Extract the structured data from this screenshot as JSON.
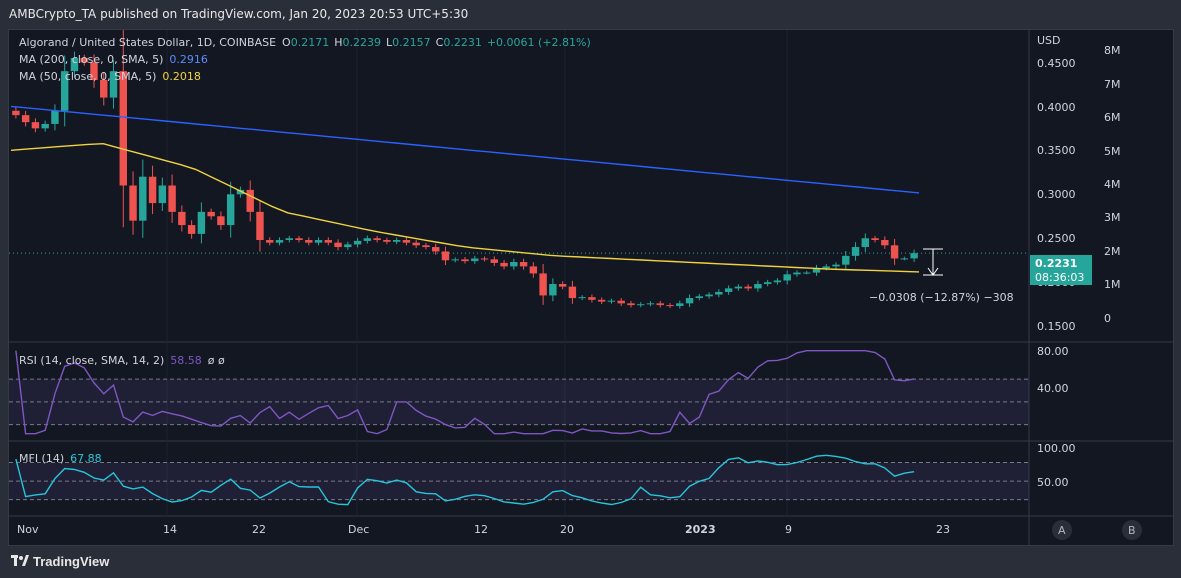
{
  "header": {
    "publisher_line": "AMBCrypto_TA published on TradingView.com, Jan 20, 2023 20:53 UTC+5:30"
  },
  "legend": {
    "symbol": "Algorand / United States Dollar, 1D, COINBASE",
    "o_label": "O",
    "o_value": "0.2171",
    "h_label": "H",
    "h_value": "0.2239",
    "l_label": "L",
    "l_value": "0.2157",
    "c_label": "C",
    "c_value": "0.2231",
    "change": "+0.0061 (+2.81%)",
    "ma200_label": "MA (200, close, 0, SMA, 5)",
    "ma200_value": "0.2916",
    "ma50_label": "MA (50, close, 0, SMA, 5)",
    "ma50_value": "0.2018"
  },
  "price_axis": {
    "currency": "USD",
    "ticks": [
      "0.4500",
      "0.4000",
      "0.3500",
      "0.3000",
      "0.2500",
      "0.1500"
    ],
    "price_label": "0.2231",
    "countdown": "08:36:03",
    "partial_label": "0.2000"
  },
  "volume_axis": {
    "ticks": [
      "8M",
      "7M",
      "6M",
      "5M",
      "4M",
      "3M",
      "2M",
      "1M",
      "0"
    ]
  },
  "measure": {
    "label": "−0.0308 (−12.87%) −308"
  },
  "rsi": {
    "label": "RSI (14, close, SMA, 14, 2)",
    "value": "58.58",
    "extra": "ø ø",
    "ticks": [
      "80.00",
      "40.00"
    ]
  },
  "mfi": {
    "label": "MFI (14)",
    "value": "67.88",
    "ticks": [
      "100.00",
      "50.00"
    ]
  },
  "time_axis": {
    "labels": [
      "Nov",
      "14",
      "22",
      "Dec",
      "12",
      "20",
      "2023",
      "9",
      "23"
    ],
    "buttons": [
      "A",
      "B"
    ]
  },
  "footer": {
    "brand": "TradingView"
  },
  "colors": {
    "up": "#26a69a",
    "down": "#ef5350",
    "ma200": "#2962ff",
    "ma50": "#f0d33f",
    "rsi": "#7e57c2",
    "mfi": "#26c6da",
    "panel": "#131722",
    "grid": "#363a45"
  },
  "chart_data": {
    "type": "candlestick",
    "closes": [
      0.38,
      0.372,
      0.365,
      0.37,
      0.385,
      0.43,
      0.445,
      0.44,
      0.42,
      0.4,
      0.43,
      0.3,
      0.26,
      0.31,
      0.28,
      0.3,
      0.27,
      0.255,
      0.245,
      0.27,
      0.265,
      0.255,
      0.29,
      0.295,
      0.27,
      0.238,
      0.235,
      0.238,
      0.24,
      0.238,
      0.235,
      0.238,
      0.235,
      0.23,
      0.233,
      0.237,
      0.24,
      0.238,
      0.236,
      0.238,
      0.235,
      0.232,
      0.23,
      0.225,
      0.215,
      0.216,
      0.214,
      0.217,
      0.216,
      0.212,
      0.208,
      0.213,
      0.208,
      0.2,
      0.175,
      0.188,
      0.185,
      0.172,
      0.173,
      0.17,
      0.168,
      0.169,
      0.166,
      0.164,
      0.165,
      0.166,
      0.164,
      0.163,
      0.166,
      0.172,
      0.174,
      0.176,
      0.179,
      0.183,
      0.185,
      0.183,
      0.188,
      0.19,
      0.192,
      0.199,
      0.201,
      0.201,
      0.206,
      0.208,
      0.21,
      0.22,
      0.23,
      0.24,
      0.238,
      0.232,
      0.217,
      0.2171,
      0.2231
    ],
    "ma200": [
      0.39,
      0.2916
    ],
    "ma50": [
      0.34,
      0.348,
      0.32,
      0.27,
      0.248,
      0.23,
      0.22,
      0.215,
      0.21,
      0.205,
      0.2018
    ],
    "price_range": [
      0.13,
      0.47
    ],
    "rsi_range": [
      20,
      100
    ],
    "rsi_band": [
      70,
      30
    ],
    "mfi_range": [
      0,
      110
    ],
    "mfi_band": [
      80,
      20
    ]
  }
}
